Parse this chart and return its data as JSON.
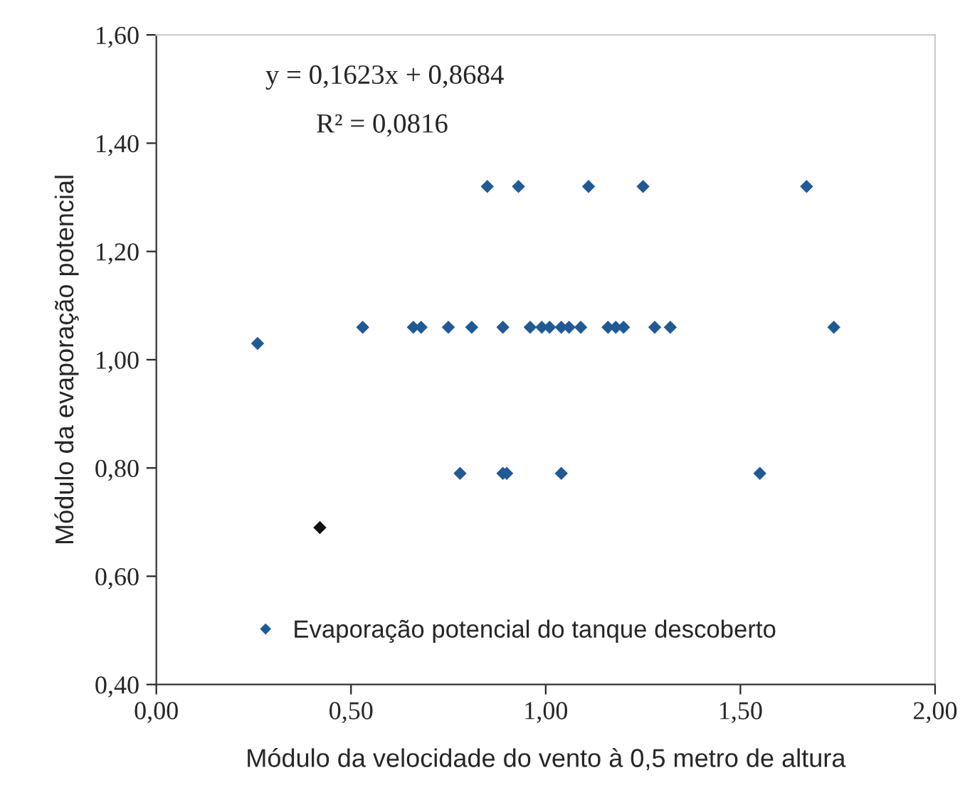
{
  "chart_data": {
    "type": "scatter",
    "xlabel": "Módulo da velocidade do vento à 0,5 metro de altura",
    "ylabel": "Módulo da evaporação potencial",
    "annotations": [
      "y = 0,1623x + 0,8684",
      "R² = 0,0816"
    ],
    "series": [
      {
        "name": "Evaporação potencial do tanque descoberto",
        "color": "#1f5a96",
        "x": [
          0.85,
          0.93,
          1.11,
          1.25,
          1.67,
          0.26,
          0.53,
          0.66,
          0.68,
          0.75,
          0.81,
          0.89,
          0.96,
          0.99,
          1.01,
          1.04,
          1.06,
          1.09,
          1.16,
          1.18,
          1.2,
          1.28,
          1.32,
          1.74,
          0.78,
          0.89,
          0.9,
          1.04,
          1.55,
          0.42
        ],
        "values": [
          1.32,
          1.32,
          1.32,
          1.32,
          1.32,
          1.03,
          1.06,
          1.06,
          1.06,
          1.06,
          1.06,
          1.06,
          1.06,
          1.06,
          1.06,
          1.06,
          1.06,
          1.06,
          1.06,
          1.06,
          1.06,
          1.06,
          1.06,
          1.06,
          0.79,
          0.79,
          0.79,
          0.79,
          0.79,
          0.69
        ],
        "colors": [
          "#1f5a96",
          "#1f5a96",
          "#1f5a96",
          "#1f5a96",
          "#1f5a96",
          "#1f5a96",
          "#1f5a96",
          "#1f5a96",
          "#1f5a96",
          "#1f5a96",
          "#1f5a96",
          "#1f5a96",
          "#1f5a96",
          "#1f5a96",
          "#1f5a96",
          "#1f5a96",
          "#1f5a96",
          "#1f5a96",
          "#1f5a96",
          "#1f5a96",
          "#1f5a96",
          "#1f5a96",
          "#1f5a96",
          "#1f5a96",
          "#1f5a96",
          "#1f5a96",
          "#1f5a96",
          "#1f5a96",
          "#1f5a96",
          "#111111"
        ]
      }
    ],
    "marker": "diamond",
    "xlim": [
      0,
      2
    ],
    "xticks": [
      {
        "value": 0,
        "label": "0,00"
      },
      {
        "value": 0.5,
        "label": "0,50"
      },
      {
        "value": 1,
        "label": "1,00"
      },
      {
        "value": 1.5,
        "label": "1,50"
      },
      {
        "value": 2,
        "label": "2,00"
      }
    ],
    "ylim": [
      0.4,
      1.6
    ],
    "yticks": [
      {
        "value": 0.4,
        "label": "0,40"
      },
      {
        "value": 0.6,
        "label": "0,60"
      },
      {
        "value": 0.8,
        "label": "0,80"
      },
      {
        "value": 1.0,
        "label": "1,00"
      },
      {
        "value": 1.2,
        "label": "1,20"
      },
      {
        "value": 1.4,
        "label": "1,40"
      },
      {
        "value": 1.6,
        "label": "1,60"
      }
    ],
    "grid": false,
    "legend": "bottom left"
  }
}
